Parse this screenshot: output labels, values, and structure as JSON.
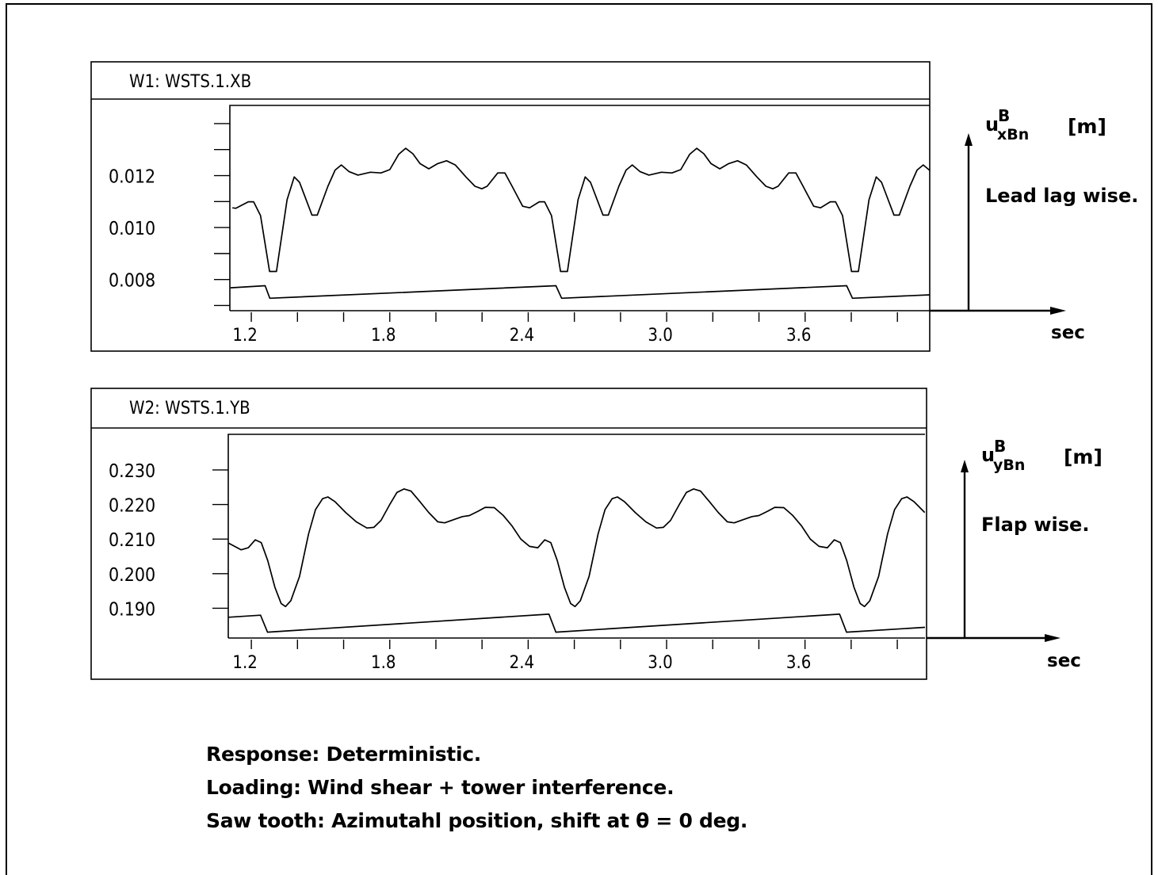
{
  "caption": {
    "line1": "Response: Deterministic.",
    "line2": "Loading: Wind shear + tower interference.",
    "line3": "Saw tooth: Azimutahl position, shift at θ = 0 deg."
  },
  "chart_data": [
    {
      "type": "line",
      "title": "W1:  WSTS.1.XB",
      "ylabel": "u^B_xBn [m]",
      "ylabel_main": "u",
      "ylabel_sup": "B",
      "ylabel_sub": "xBn",
      "ylabel_unit": "[m]",
      "xlabel": "sec",
      "description": "Lead lag wise.",
      "xlim": [
        1.107,
        4.14
      ],
      "ylim": [
        0.0068,
        0.0147
      ],
      "x_ticks": [
        1.2,
        1.4,
        1.6,
        1.8,
        2.0,
        2.2,
        2.4,
        2.6,
        2.8,
        3.0,
        3.2,
        3.4,
        3.6,
        3.8,
        4.0
      ],
      "x_tick_labels": [
        "1.2",
        "1.8",
        "2.4",
        "3.0",
        "3.6"
      ],
      "y_ticks": [
        0.007,
        0.008,
        0.009,
        0.01,
        0.011,
        0.012,
        0.013,
        0.014
      ],
      "y_tick_labels": [
        "0.012",
        "0.010",
        "0.008"
      ],
      "grid": false,
      "series": [
        {
          "x": [
            1.118,
            1.133,
            1.187,
            1.21,
            1.24,
            1.279,
            1.309,
            1.355,
            1.386,
            1.409,
            1.463,
            1.486,
            1.532,
            1.563,
            1.59,
            1.624,
            1.662,
            1.716,
            1.762,
            1.8,
            1.839,
            1.869,
            1.9,
            1.931,
            1.969,
            2.008,
            2.046,
            2.084,
            2.13,
            2.169,
            2.199,
            2.222,
            2.268,
            2.299,
            2.33,
            2.376,
            2.406,
            2.448,
            2.471,
            2.501,
            2.54,
            2.57,
            2.616,
            2.647,
            2.67,
            2.724,
            2.747,
            2.793,
            2.824,
            2.851,
            2.885,
            2.923,
            2.977,
            3.023,
            3.061,
            3.1,
            3.13,
            3.161,
            3.192,
            3.23,
            3.269,
            3.307,
            3.345,
            3.391,
            3.43,
            3.46,
            3.483,
            3.529,
            3.56,
            3.591,
            3.637,
            3.667,
            3.709,
            3.732,
            3.762,
            3.801,
            3.831,
            3.877,
            3.908,
            3.931,
            3.985,
            4.008,
            4.054,
            4.085,
            4.112,
            4.14
          ],
          "y": [
            0.01076,
            0.01074,
            0.01099,
            0.01099,
            0.01046,
            0.00831,
            0.00831,
            0.01107,
            0.01195,
            0.01174,
            0.01048,
            0.01048,
            0.01159,
            0.01221,
            0.01241,
            0.01215,
            0.01202,
            0.01213,
            0.0121,
            0.01223,
            0.01282,
            0.01305,
            0.01284,
            0.01246,
            0.01226,
            0.01246,
            0.01257,
            0.01241,
            0.01195,
            0.01159,
            0.01149,
            0.01159,
            0.0121,
            0.0121,
            0.01159,
            0.01082,
            0.01076,
            0.01099,
            0.01099,
            0.01046,
            0.00831,
            0.00831,
            0.01107,
            0.01195,
            0.01174,
            0.01048,
            0.01048,
            0.01159,
            0.01221,
            0.01241,
            0.01215,
            0.01202,
            0.01213,
            0.0121,
            0.01223,
            0.01282,
            0.01305,
            0.01284,
            0.01246,
            0.01226,
            0.01246,
            0.01257,
            0.01241,
            0.01195,
            0.01159,
            0.01149,
            0.01159,
            0.0121,
            0.0121,
            0.01159,
            0.01082,
            0.01076,
            0.01099,
            0.01099,
            0.01046,
            0.00831,
            0.00831,
            0.01107,
            0.01195,
            0.01174,
            0.01048,
            0.01048,
            0.01159,
            0.01221,
            0.01241,
            0.0122
          ]
        },
        {
          "x": [
            1.11,
            1.26,
            1.28,
            2.52,
            2.545,
            3.78,
            3.805,
            4.14
          ],
          "y": [
            0.00768,
            0.00776,
            0.00728,
            0.00776,
            0.00728,
            0.00776,
            0.00728,
            0.00741
          ]
        }
      ]
    },
    {
      "type": "line",
      "title": "W2:  WSTS.1.YB",
      "ylabel": "u^B_yBn [m]",
      "ylabel_main": "u",
      "ylabel_sup": "B",
      "ylabel_sub": "yBn",
      "ylabel_unit": "[m]",
      "xlabel": "sec",
      "description": "Flap wise.",
      "xlim": [
        1.1,
        4.12
      ],
      "ylim": [
        0.1814,
        0.2403
      ],
      "x_ticks": [
        1.2,
        1.4,
        1.6,
        1.8,
        2.0,
        2.2,
        2.4,
        2.6,
        2.8,
        3.0,
        3.2,
        3.4,
        3.6,
        3.8,
        4.0
      ],
      "x_tick_labels": [
        "1.2",
        "1.8",
        "2.4",
        "3.0",
        "3.6"
      ],
      "y_ticks": [
        0.19,
        0.2,
        0.21,
        0.22,
        0.23
      ],
      "y_tick_labels": [
        "0.230",
        "0.220",
        "0.210",
        "0.200",
        "0.190"
      ],
      "grid": false,
      "series": [
        {
          "x": [
            1.102,
            1.156,
            1.187,
            1.217,
            1.243,
            1.271,
            1.302,
            1.329,
            1.348,
            1.371,
            1.409,
            1.448,
            1.478,
            1.509,
            1.532,
            1.563,
            1.609,
            1.655,
            1.701,
            1.731,
            1.762,
            1.8,
            1.831,
            1.862,
            1.892,
            1.931,
            1.969,
            2.008,
            2.038,
            2.084,
            2.115,
            2.145,
            2.184,
            2.214,
            2.253,
            2.291,
            2.33,
            2.368,
            2.406,
            2.442,
            2.472,
            2.498,
            2.526,
            2.557,
            2.584,
            2.603,
            2.626,
            2.664,
            2.703,
            2.733,
            2.764,
            2.787,
            2.818,
            2.864,
            2.91,
            2.956,
            2.986,
            3.017,
            3.055,
            3.086,
            3.117,
            3.147,
            3.186,
            3.224,
            3.263,
            3.293,
            3.339,
            3.37,
            3.4,
            3.439,
            3.469,
            3.508,
            3.546,
            3.585,
            3.623,
            3.661,
            3.697,
            3.727,
            3.753,
            3.781,
            3.812,
            3.839,
            3.858,
            3.881,
            3.919,
            3.958,
            3.988,
            4.019,
            4.042,
            4.073,
            4.119
          ],
          "y": [
            0.2088,
            0.2069,
            0.2075,
            0.2098,
            0.209,
            0.2038,
            0.1961,
            0.1914,
            0.1905,
            0.1922,
            0.1992,
            0.2115,
            0.2185,
            0.2217,
            0.2222,
            0.2208,
            0.2177,
            0.215,
            0.2132,
            0.2134,
            0.2154,
            0.22,
            0.2235,
            0.2245,
            0.2239,
            0.2208,
            0.2177,
            0.215,
            0.2147,
            0.2158,
            0.2165,
            0.2168,
            0.2181,
            0.2192,
            0.2191,
            0.2169,
            0.2138,
            0.21,
            0.2079,
            0.2075,
            0.2098,
            0.209,
            0.2038,
            0.1961,
            0.1914,
            0.1905,
            0.1922,
            0.1992,
            0.2115,
            0.2185,
            0.2217,
            0.2222,
            0.2208,
            0.2177,
            0.215,
            0.2132,
            0.2134,
            0.2154,
            0.22,
            0.2235,
            0.2245,
            0.2239,
            0.2208,
            0.2177,
            0.215,
            0.2147,
            0.2158,
            0.2165,
            0.2168,
            0.2181,
            0.2192,
            0.2191,
            0.2169,
            0.2138,
            0.21,
            0.2079,
            0.2075,
            0.2098,
            0.209,
            0.2038,
            0.1961,
            0.1914,
            0.1905,
            0.1922,
            0.1992,
            0.2115,
            0.2185,
            0.2217,
            0.2222,
            0.2208,
            0.2177
          ]
        },
        {
          "x": [
            1.1,
            1.24,
            1.27,
            2.49,
            2.52,
            3.75,
            3.78,
            4.12
          ],
          "y": [
            0.1874,
            0.188,
            0.1831,
            0.1883,
            0.1831,
            0.1883,
            0.1831,
            0.1845
          ]
        }
      ]
    }
  ]
}
